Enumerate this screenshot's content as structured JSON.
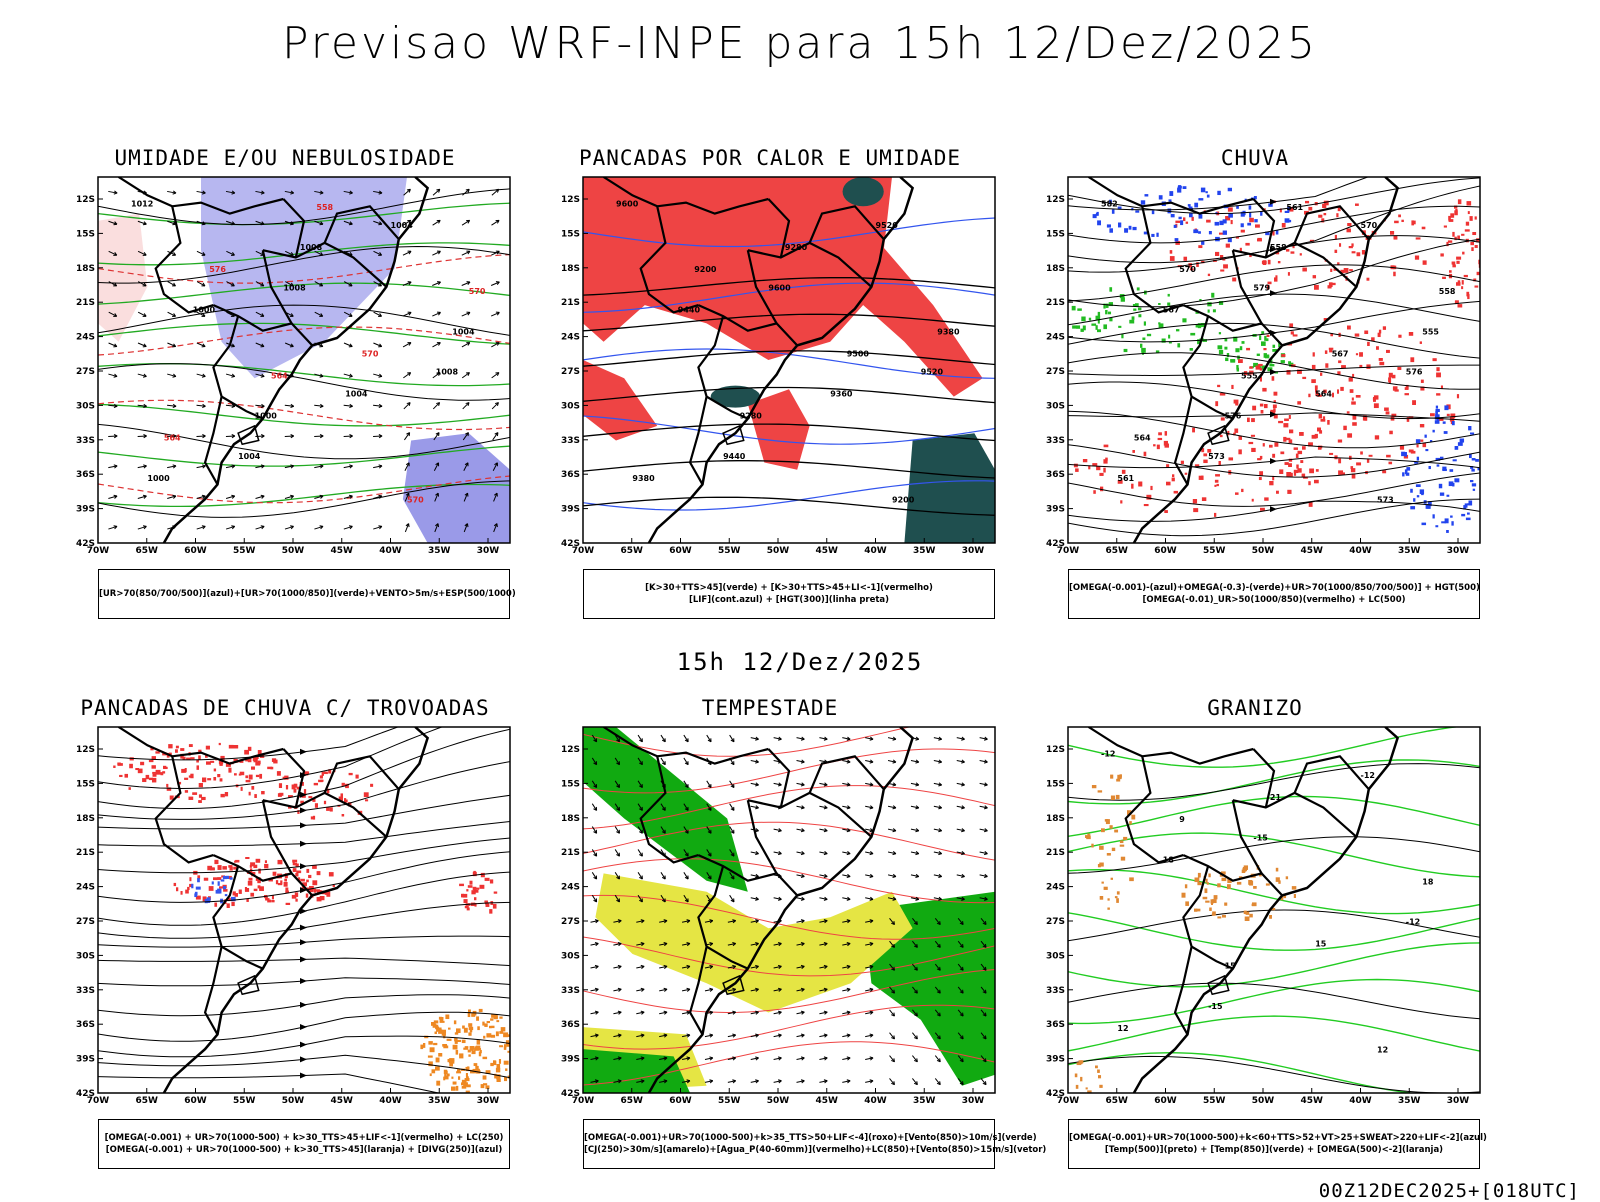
{
  "title": "Previsao WRF-INPE  para 15h 12/Dez/2025",
  "subtitle": "15h 12/Dez/2025",
  "footer": "00Z12DEC2025+[018UTC]",
  "axes": {
    "lat": [
      "12S",
      "15S",
      "18S",
      "21S",
      "24S",
      "27S",
      "30S",
      "33S",
      "36S",
      "39S",
      "42S"
    ],
    "lon": [
      "70W",
      "65W",
      "60W",
      "55W",
      "50W",
      "45W",
      "40W",
      "35W",
      "30W"
    ]
  },
  "panels": [
    {
      "title": "UMIDADE E/OU NEBULOSIDADE",
      "legend": [
        "[UR>70(850/700/500)](azul)+[UR>70(1000/850)](verde)+VENTO>5m/s+ESP(500/1000)"
      ],
      "labels": [
        "1012",
        "1008",
        "1008",
        "1004",
        "1004",
        "1000",
        "1004",
        "1000",
        "1008",
        "1004",
        "1000",
        "570",
        "576",
        "570",
        "564",
        "558",
        "570",
        "564"
      ]
    },
    {
      "title": "PANCADAS POR CALOR E UMIDADE",
      "legend": [
        "[K>30+TTS>45](verde) + [K>30+TTS>45+LI<-1](vermelho)",
        "[LIF](cont.azul) + [HGT(300)](linha preta)"
      ],
      "labels": [
        "9600",
        "9600",
        "9520",
        "9440",
        "9520",
        "9440",
        "9360",
        "9380",
        "9280",
        "9380",
        "9280",
        "9200",
        "9200",
        "9500"
      ]
    },
    {
      "title": "CHUVA",
      "legend": [
        "[OMEGA(-0.001)-(azul)+OMEGA(-0.3)-(verde)+UR>70(1000/850/700/500)] + HGT(500)",
        "[OMEGA(-0.01)_UR>50(1000/850)(vermelho) + LC(500)"
      ],
      "labels": [
        "582",
        "579",
        "576",
        "573",
        "570",
        "567",
        "564",
        "561",
        "558",
        "555",
        "576",
        "573",
        "570",
        "567",
        "564",
        "561",
        "558",
        "555"
      ]
    },
    {
      "title": "PANCADAS DE CHUVA C/ TROVOADAS",
      "legend": [
        "[OMEGA(-0.001) + UR>70(1000-500) + k>30_TTS>45+LIF<-1](vermelho) + LC(250)",
        "[OMEGA(-0.001) + UR>70(1000-500) + k>30_TTS>45](laranja) + [DIVG(250)](azul)"
      ],
      "labels": []
    },
    {
      "title": "TEMPESTADE",
      "legend": [
        "[OMEGA(-0.001)+UR>70(1000-500)+k>35_TTS>50+LIF<-4](roxo)+[Vento(850)>10m/s](verde)",
        "[CJ(250)>30m/s](amarelo)+[Agua_P(40-60mm)](vermelho)+LC(850)+[Vento(850)>15m/s](vetor)"
      ],
      "labels": []
    },
    {
      "title": "GRANIZO",
      "legend": [
        "[OMEGA(-0.001)+UR>70(1000-500)+k<60+TTS>52+VT>25+SWEAT>220+LIF<-2](azul)",
        "[Temp(500)](preto) + [Temp(850)](verde) + [OMEGA(500)<-2](laranja)"
      ],
      "labels": [
        "-12",
        "-15",
        "-12",
        "-15",
        "-12",
        "18",
        "15",
        "12",
        "21",
        "18",
        "15",
        "12",
        "9"
      ]
    }
  ]
}
